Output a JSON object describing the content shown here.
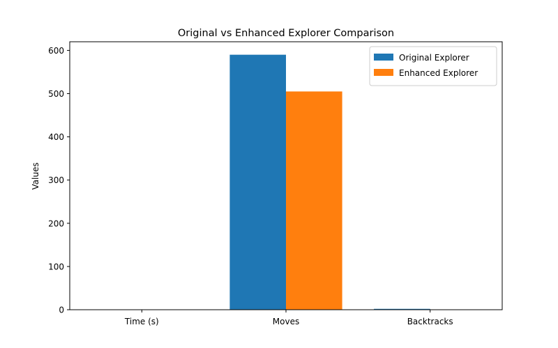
{
  "chart_data": {
    "type": "bar",
    "title": "Original vs Enhanced Explorer Comparison",
    "xlabel": "",
    "ylabel": "Values",
    "categories": [
      "Time (s)",
      "Moves",
      "Backtracks"
    ],
    "series": [
      {
        "name": "Original Explorer",
        "color": "#1f77b4",
        "values": [
          0.05,
          590,
          2
        ]
      },
      {
        "name": "Enhanced Explorer",
        "color": "#ff7f0e",
        "values": [
          0.05,
          505,
          0
        ]
      }
    ],
    "ylim": [
      0,
      620
    ],
    "yticks": [
      0,
      100,
      200,
      300,
      400,
      500,
      600
    ],
    "grid": false,
    "legend_position": "top-right"
  }
}
